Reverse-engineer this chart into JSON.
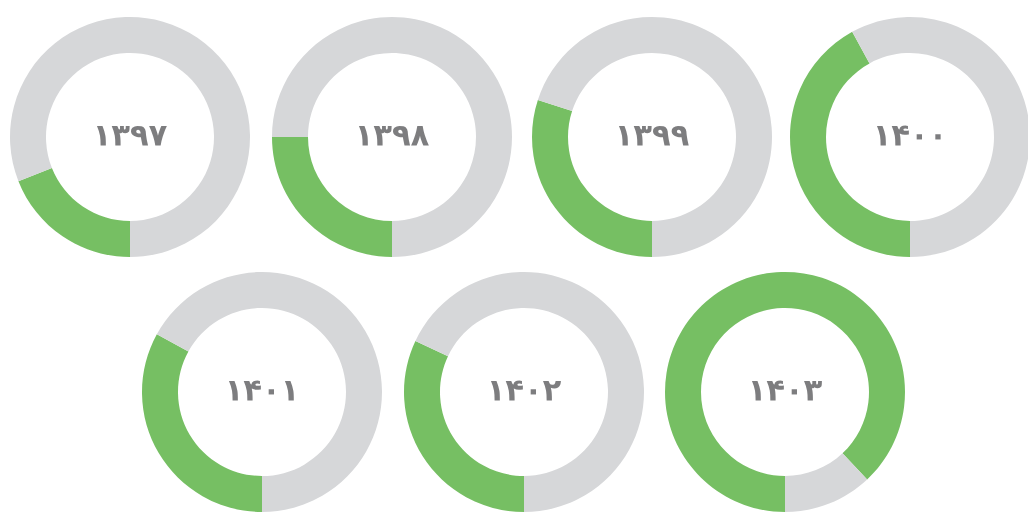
{
  "chart_data": [
    {
      "type": "donut",
      "title": "۱۳۹۷",
      "categories": [
        null,
        null
      ],
      "values": [
        19,
        81
      ],
      "colors": [
        "#76bf63",
        "#d6d7d9"
      ]
    },
    {
      "type": "donut",
      "title": "۱۳۹۸",
      "categories": [
        null,
        null
      ],
      "values": [
        25,
        75
      ],
      "colors": [
        "#76bf63",
        "#d6d7d9"
      ]
    },
    {
      "type": "donut",
      "title": "۱۳۹۹",
      "categories": [
        null,
        null
      ],
      "values": [
        30,
        70
      ],
      "colors": [
        "#76bf63",
        "#d6d7d9"
      ]
    },
    {
      "type": "donut",
      "title": "۱۴۰۰",
      "categories": [
        null,
        null
      ],
      "values": [
        42,
        58
      ],
      "colors": [
        "#76bf63",
        "#d6d7d9"
      ]
    },
    {
      "type": "donut",
      "title": "۱۴۰۱",
      "categories": [
        null,
        null
      ],
      "values": [
        33,
        67
      ],
      "colors": [
        "#76bf63",
        "#d6d7d9"
      ]
    },
    {
      "type": "donut",
      "title": "۱۴۰۲",
      "categories": [
        null,
        null
      ],
      "values": [
        32,
        68
      ],
      "colors": [
        "#76bf63",
        "#d6d7d9"
      ]
    },
    {
      "type": "donut",
      "title": "۱۴۰۳",
      "categories": [
        null,
        null
      ],
      "values": [
        88,
        12
      ],
      "colors": [
        "#76bf63",
        "#d6d7d9"
      ]
    }
  ]
}
